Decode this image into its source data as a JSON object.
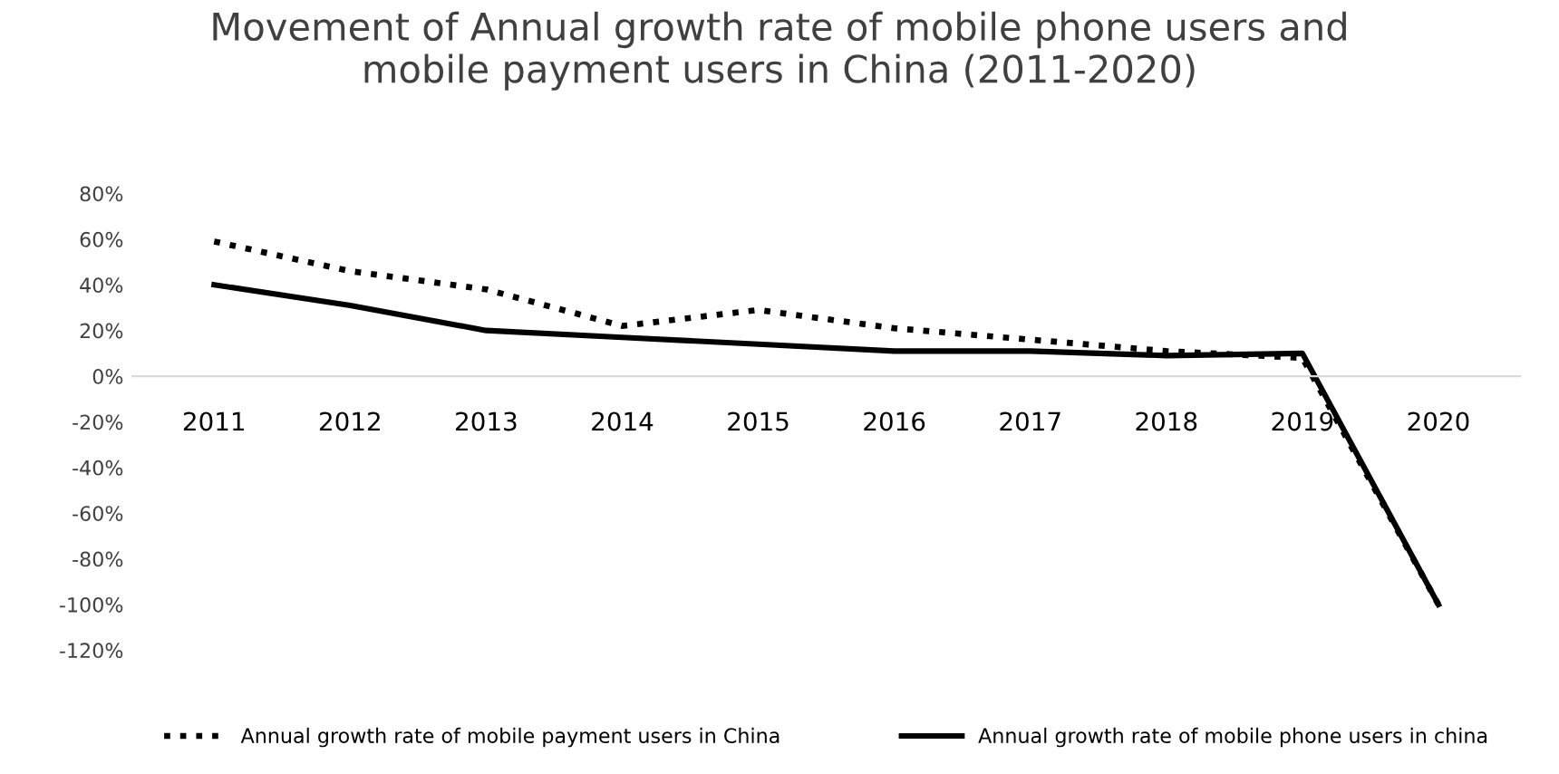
{
  "chart_data": {
    "type": "line",
    "title": "Movement of Annual growth rate of mobile phone users and\nmobile payment users in China (2011-2020)",
    "categories": [
      "2011",
      "2012",
      "2013",
      "2014",
      "2015",
      "2016",
      "2017",
      "2018",
      "2019",
      "2020"
    ],
    "series": [
      {
        "name": "Annual growth rate of mobile payment users in China",
        "color": "#000000",
        "line_style": "dotted",
        "values": [
          59,
          46,
          38,
          22,
          29,
          21,
          16,
          11,
          8,
          -100
        ]
      },
      {
        "name": "Annual growth rate of mobile phone users in china",
        "color": "#000000",
        "line_style": "solid",
        "values": [
          40,
          31,
          20,
          17,
          14,
          11,
          11,
          9,
          10,
          -100
        ]
      }
    ],
    "ylim": [
      -120,
      80
    ],
    "yticks": [
      {
        "value": -120,
        "label": "-120%"
      },
      {
        "value": -100,
        "label": "-100%"
      },
      {
        "value": -80,
        "label": "-80%"
      },
      {
        "value": -60,
        "label": "-60%"
      },
      {
        "value": -40,
        "label": "-40%"
      },
      {
        "value": -20,
        "label": "-20%"
      },
      {
        "value": 0,
        "label": "0%"
      },
      {
        "value": 20,
        "label": "20%"
      },
      {
        "value": 40,
        "label": "40%"
      },
      {
        "value": 60,
        "label": "60%"
      },
      {
        "value": 80,
        "label": "80%"
      }
    ],
    "grid": false,
    "legend": "bottom"
  }
}
